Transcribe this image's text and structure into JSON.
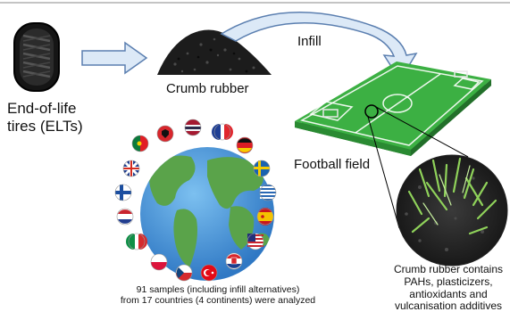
{
  "labels": {
    "tires": [
      "End-of-life",
      "tires (ELTs)"
    ],
    "crumb_rubber": "Crumb rubber",
    "infill": "Infill",
    "football_field": "Football field",
    "samples": [
      "91 samples (including infill alternatives)",
      "from 17 countries (4 continents) were analyzed"
    ],
    "contains": [
      "Crumb rubber contains",
      "PAHs, plasticizers,",
      "antioxidants and",
      "vulcanisation additives"
    ]
  },
  "flags": [
    "Albania",
    "Thailand",
    "France",
    "Portugal",
    "Germany",
    "United Kingdom",
    "Sweden",
    "Finland",
    "Greece",
    "Netherlands",
    "Spain",
    "Italy",
    "United States",
    "Poland",
    "Croatia",
    "Czech Republic",
    "Turkey"
  ],
  "colors": {
    "arrow_fill": "#dce9f7",
    "arrow_stroke": "#5b7fb0",
    "field_green": "#3cb043",
    "ocean": "#3d8fd6",
    "land": "#5aa34a"
  }
}
